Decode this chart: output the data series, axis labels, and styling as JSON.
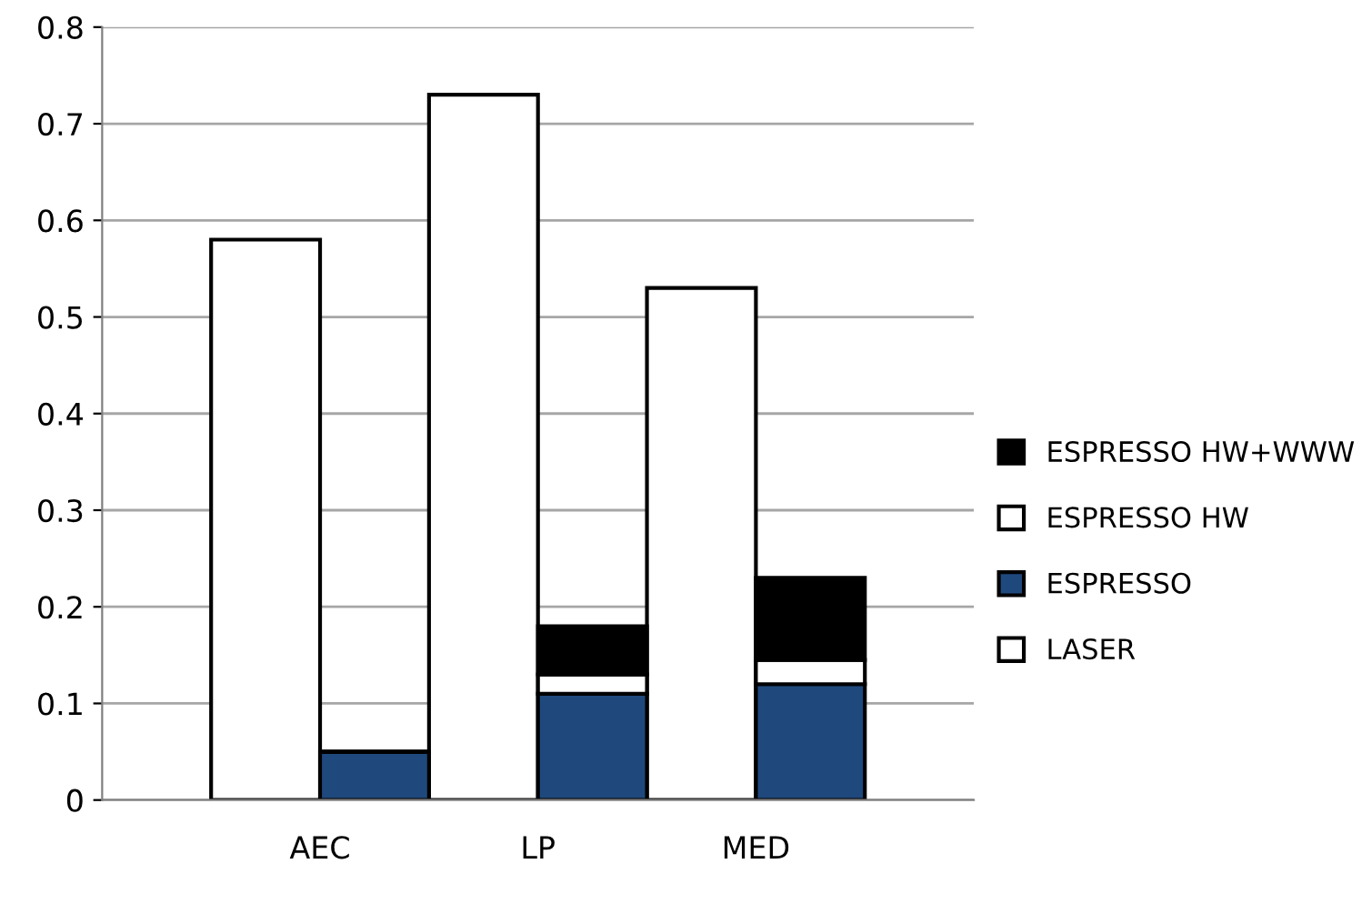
{
  "chart_data": {
    "type": "bar",
    "stacked": true,
    "categories": [
      "AEC",
      null,
      "LP",
      null,
      "MED",
      null
    ],
    "series": [
      {
        "name": "LASER",
        "color": "#ffffff",
        "values": [
          0.58,
          null,
          0.73,
          null,
          0.53,
          null
        ]
      },
      {
        "name": "ESPRESSO",
        "color": "#1f497d",
        "values": [
          null,
          0.05,
          null,
          0.11,
          null,
          0.12
        ]
      },
      {
        "name": "ESPRESSO HW",
        "color": "#ffffff",
        "values": [
          null,
          0,
          null,
          0.02,
          null,
          0.025
        ]
      },
      {
        "name": "ESPRESSO HW+WWW",
        "color": "#000000",
        "values": [
          null,
          0,
          null,
          0.05,
          null,
          0.085
        ]
      }
    ],
    "ylim": [
      0,
      0.8
    ],
    "yticks": [
      0,
      0.1,
      0.2,
      0.3,
      0.4,
      0.5,
      0.6,
      0.7,
      0.8
    ],
    "grid": "y",
    "legend": "right"
  }
}
